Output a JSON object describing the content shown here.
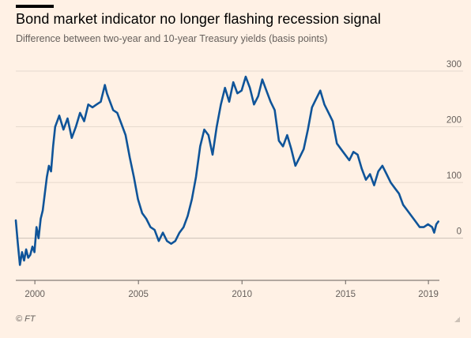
{
  "header": {
    "title": "Bond market indicator no longer flashing recession signal",
    "subtitle": "Difference between two-year and 10-year Treasury yields (basis points)"
  },
  "footer": {
    "credit": "© FT",
    "resize_icon": "resize-grip-icon"
  },
  "colors": {
    "background": "#FFF1E5",
    "line": "#0F5499",
    "grid": "#E6D9CE",
    "zero": "#CCC1B7"
  },
  "chart_data": {
    "type": "line",
    "title": "Bond market indicator no longer flashing recession signal",
    "subtitle": "Difference between two-year and 10-year Treasury yields (basis points)",
    "xlabel": "",
    "ylabel": "",
    "x_ticks": [
      "2000",
      "2005",
      "2010",
      "2015",
      "2019"
    ],
    "y_ticks": [
      "300",
      "200",
      "100",
      "0"
    ],
    "xlim": [
      1999.1,
      2019.55
    ],
    "ylim": [
      -60,
      300
    ],
    "grid": true,
    "legend": "none",
    "series": [
      {
        "x": [
          1999.1,
          1999.2,
          1999.3,
          1999.4,
          1999.5,
          1999.6,
          1999.7,
          1999.8,
          1999.9,
          2000.0,
          2000.1,
          2000.2,
          2000.3,
          2000.4,
          2000.5,
          2000.6,
          2000.7,
          2000.8,
          2000.9,
          2001.0,
          2001.2,
          2001.4,
          2001.6,
          2001.8,
          2002.0,
          2002.2,
          2002.4,
          2002.6,
          2002.8,
          2003.0,
          2003.2,
          2003.4,
          2003.5,
          2003.6,
          2003.8,
          2004.0,
          2004.2,
          2004.4,
          2004.6,
          2004.8,
          2005.0,
          2005.2,
          2005.4,
          2005.6,
          2005.8,
          2006.0,
          2006.2,
          2006.4,
          2006.6,
          2006.8,
          2007.0,
          2007.2,
          2007.4,
          2007.6,
          2007.8,
          2008.0,
          2008.2,
          2008.4,
          2008.6,
          2008.8,
          2009.0,
          2009.2,
          2009.4,
          2009.6,
          2009.8,
          2010.0,
          2010.2,
          2010.4,
          2010.6,
          2010.8,
          2011.0,
          2011.2,
          2011.4,
          2011.6,
          2011.8,
          2012.0,
          2012.2,
          2012.4,
          2012.6,
          2012.8,
          2013.0,
          2013.2,
          2013.4,
          2013.6,
          2013.8,
          2014.0,
          2014.2,
          2014.4,
          2014.6,
          2014.8,
          2015.0,
          2015.2,
          2015.4,
          2015.6,
          2015.8,
          2016.0,
          2016.2,
          2016.4,
          2016.6,
          2016.8,
          2017.0,
          2017.2,
          2017.4,
          2017.6,
          2017.8,
          2018.0,
          2018.2,
          2018.4,
          2018.6,
          2018.8,
          2019.0,
          2019.2,
          2019.3,
          2019.4,
          2019.5
        ],
        "values": [
          32,
          -10,
          -48,
          -25,
          -40,
          -20,
          -35,
          -30,
          -15,
          -25,
          20,
          0,
          35,
          50,
          80,
          110,
          130,
          120,
          165,
          200,
          220,
          195,
          215,
          180,
          200,
          225,
          210,
          240,
          235,
          240,
          245,
          275,
          260,
          250,
          230,
          225,
          205,
          185,
          145,
          110,
          70,
          45,
          35,
          20,
          15,
          -5,
          10,
          -5,
          -10,
          -5,
          10,
          20,
          40,
          70,
          110,
          165,
          195,
          185,
          150,
          200,
          240,
          270,
          245,
          280,
          260,
          265,
          290,
          270,
          240,
          255,
          285,
          265,
          245,
          230,
          175,
          165,
          185,
          160,
          130,
          145,
          160,
          195,
          235,
          250,
          265,
          240,
          225,
          210,
          170,
          160,
          150,
          140,
          155,
          150,
          125,
          105,
          115,
          95,
          120,
          130,
          115,
          100,
          90,
          80,
          60,
          50,
          40,
          30,
          20,
          20,
          25,
          20,
          10,
          25,
          30
        ]
      }
    ]
  }
}
